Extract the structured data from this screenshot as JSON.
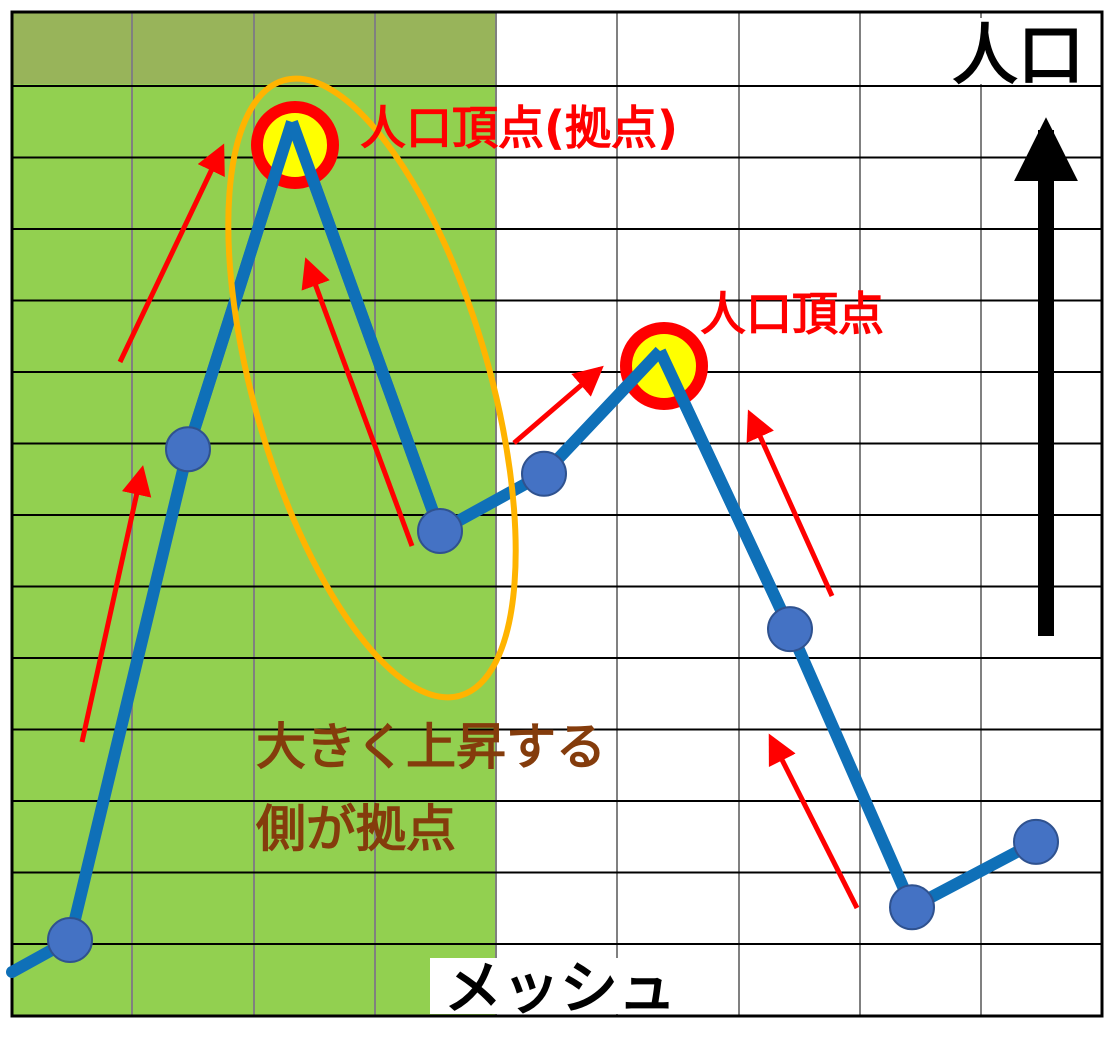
{
  "axis_labels": {
    "y": "人口",
    "x": "メッシュ"
  },
  "annotations": {
    "base_peak": "人口頂点(拠点)",
    "other_peak": "人口頂点",
    "rule_line1": "大きく上昇する",
    "rule_line2": "側が拠点"
  },
  "population_profile": [
    0,
    0.6,
    1.0,
    0.5,
    0.57,
    0.72,
    0.38,
    0.04,
    0.12
  ],
  "colors": {
    "line": "#0f70b8",
    "point": "#4472c4",
    "base_region": "#92d050",
    "base_region_top": "#98b45a",
    "arrow": "#ff0000",
    "peak_ring": "#ff0000",
    "peak_fill": "#ffff00",
    "base_outline": "#ffb400",
    "label_red": "#ff0000",
    "label_brown": "#843c0c",
    "axis": "#000000"
  }
}
